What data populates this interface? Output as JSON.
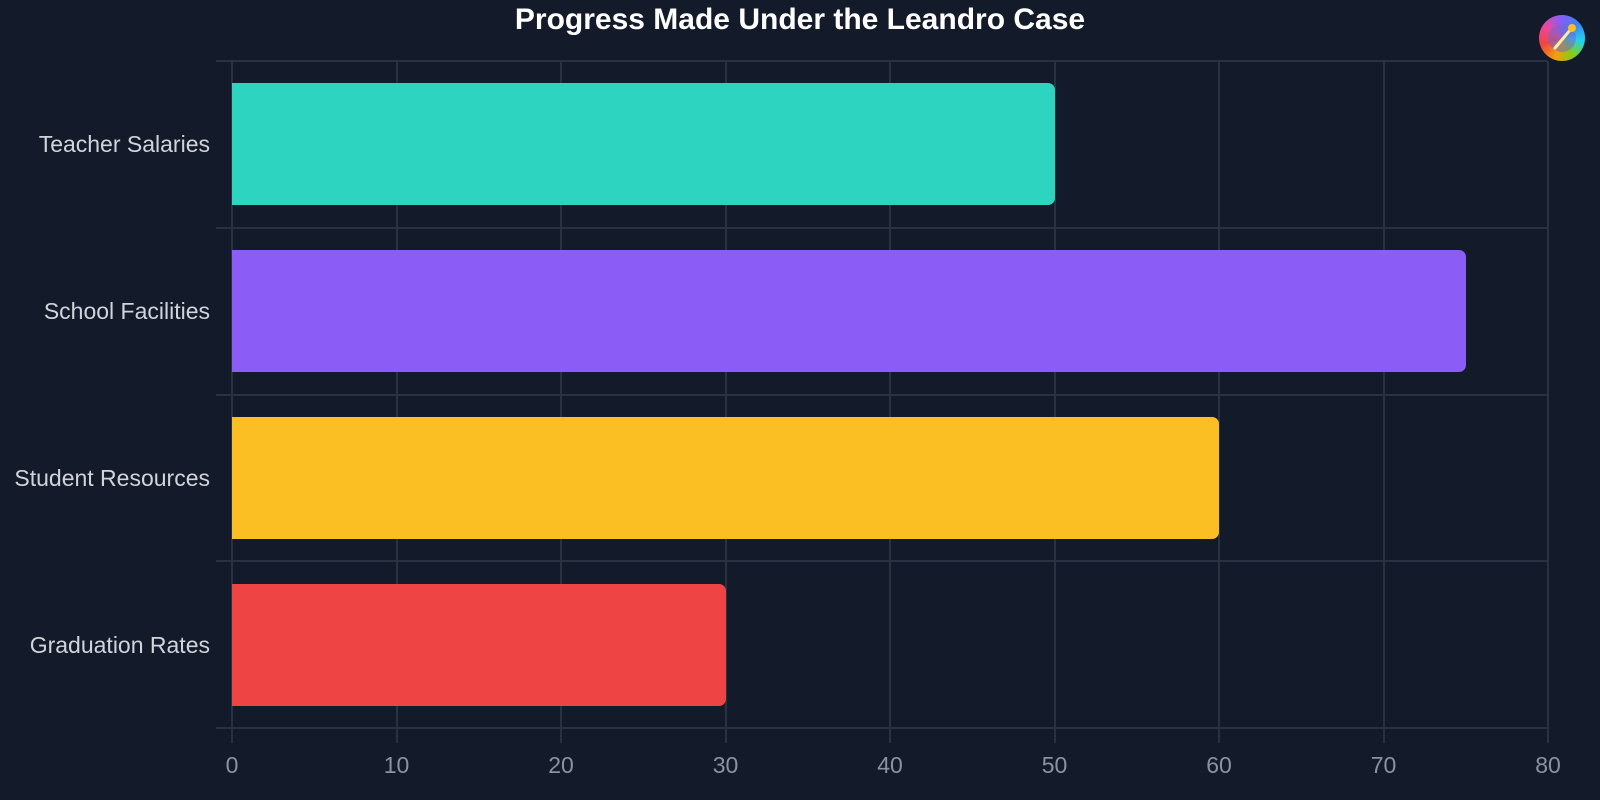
{
  "chart_data": {
    "type": "bar",
    "orientation": "horizontal",
    "title": "Progress Made Under the Leandro Case",
    "categories": [
      "Teacher Salaries",
      "School Facilities",
      "Student Resources",
      "Graduation Rates"
    ],
    "values": [
      50,
      75,
      60,
      30
    ],
    "colors": [
      "#2dd4bf",
      "#8b5cf6",
      "#fbbf24",
      "#ef4444"
    ],
    "xlabel": "",
    "ylabel": "",
    "xlim": [
      0,
      80
    ],
    "xticks": [
      "0",
      "10",
      "20",
      "30",
      "40",
      "50",
      "60",
      "70",
      "80"
    ],
    "grid": true,
    "legend": "none"
  },
  "header": {
    "title": "Progress Made Under the Leandro Case",
    "logo_icon": "color-wheel-pen-icon"
  }
}
